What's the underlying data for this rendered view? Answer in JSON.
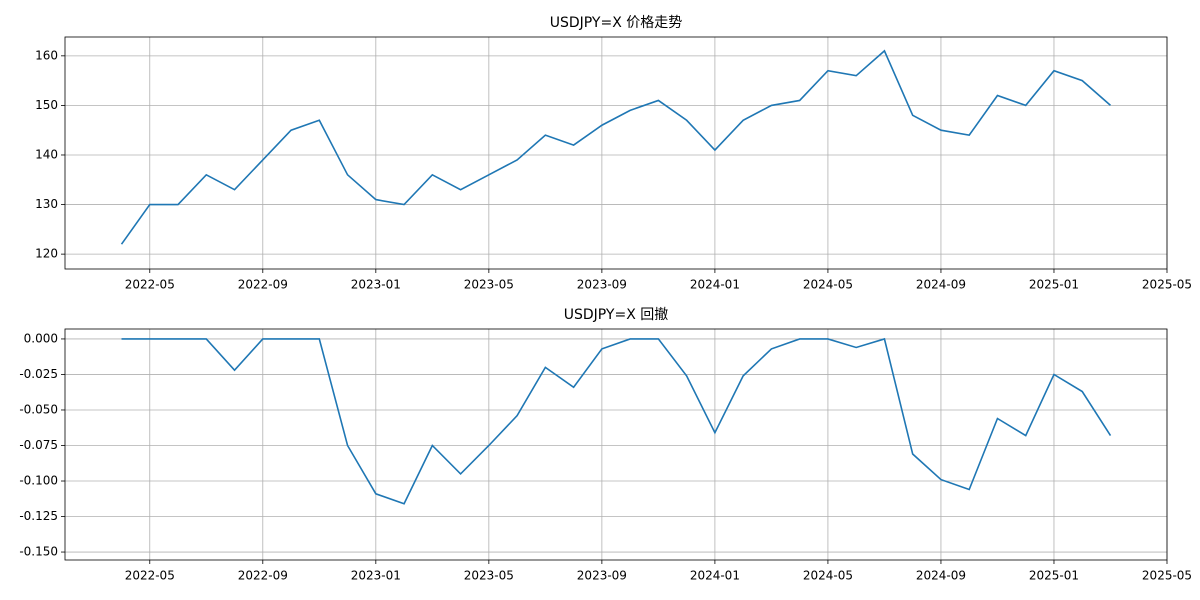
{
  "chart_data": [
    {
      "type": "line",
      "title": "USDJPY=X 价格走势",
      "color": "#1f77b4",
      "grid": true,
      "x": [
        "2022-04",
        "2022-05",
        "2022-06",
        "2022-07",
        "2022-08",
        "2022-09",
        "2022-10",
        "2022-11",
        "2022-12",
        "2023-01",
        "2023-02",
        "2023-03",
        "2023-04",
        "2023-05",
        "2023-06",
        "2023-07",
        "2023-08",
        "2023-09",
        "2023-10",
        "2023-11",
        "2023-12",
        "2024-01",
        "2024-02",
        "2024-03",
        "2024-04",
        "2024-05",
        "2024-06",
        "2024-07",
        "2024-08",
        "2024-09",
        "2024-10",
        "2024-11",
        "2024-12",
        "2025-01",
        "2025-02",
        "2025-03"
      ],
      "values": [
        122,
        130,
        130,
        136,
        133,
        139,
        145,
        147,
        136,
        131,
        130,
        136,
        133,
        136,
        139,
        144,
        142,
        146,
        149,
        151,
        147,
        141,
        147,
        150,
        151,
        157,
        156,
        161,
        148,
        145,
        144,
        152,
        150,
        157,
        155,
        150
      ],
      "xlim": [
        "2022-02",
        "2025-05"
      ],
      "xticks": [
        "2022-05",
        "2022-09",
        "2023-01",
        "2023-05",
        "2023-09",
        "2024-01",
        "2024-05",
        "2024-09",
        "2025-01",
        "2025-05"
      ],
      "ylim": [
        117,
        163.8
      ],
      "yticks": [
        120,
        130,
        140,
        150,
        160
      ]
    },
    {
      "type": "line",
      "title": "USDJPY=X 回撤",
      "color": "#1f77b4",
      "grid": true,
      "x": [
        "2022-04",
        "2022-05",
        "2022-06",
        "2022-07",
        "2022-08",
        "2022-09",
        "2022-10",
        "2022-11",
        "2022-12",
        "2023-01",
        "2023-02",
        "2023-03",
        "2023-04",
        "2023-05",
        "2023-06",
        "2023-07",
        "2023-08",
        "2023-09",
        "2023-10",
        "2023-11",
        "2023-12",
        "2024-01",
        "2024-02",
        "2024-03",
        "2024-04",
        "2024-05",
        "2024-06",
        "2024-07",
        "2024-08",
        "2024-09",
        "2024-10",
        "2024-11",
        "2024-12",
        "2025-01",
        "2025-02",
        "2025-03"
      ],
      "values": [
        0,
        0,
        0,
        0,
        -0.022,
        0,
        0,
        0,
        -0.075,
        -0.109,
        -0.116,
        -0.075,
        -0.095,
        -0.075,
        -0.054,
        -0.02,
        -0.034,
        -0.007,
        0,
        0,
        -0.026,
        -0.066,
        -0.026,
        -0.007,
        0,
        0,
        -0.006,
        0,
        -0.081,
        -0.099,
        -0.106,
        -0.056,
        -0.068,
        -0.025,
        -0.037,
        -0.068
      ],
      "xlim": [
        "2022-02",
        "2025-05"
      ],
      "xticks": [
        "2022-05",
        "2022-09",
        "2023-01",
        "2023-05",
        "2023-09",
        "2024-01",
        "2024-05",
        "2024-09",
        "2025-01",
        "2025-05"
      ],
      "ylim": [
        -0.1556,
        0.007
      ],
      "yticks": [
        {
          "value": 0,
          "label": "0.000"
        },
        {
          "value": -0.025,
          "label": "-0.025"
        },
        {
          "value": -0.05,
          "label": "-0.050"
        },
        {
          "value": -0.075,
          "label": "-0.075"
        },
        {
          "value": -0.1,
          "label": "-0.100"
        },
        {
          "value": -0.125,
          "label": "-0.125"
        },
        {
          "value": -0.15,
          "label": "-0.150"
        }
      ]
    }
  ]
}
